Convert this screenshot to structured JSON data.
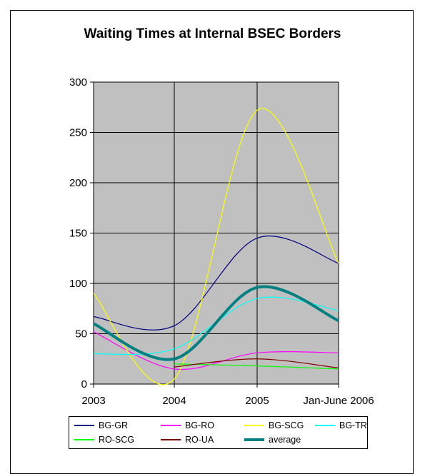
{
  "chart_data": {
    "type": "line",
    "title": "Waiting Times at Internal BSEC Borders",
    "xlabel": "",
    "ylabel": "",
    "categories": [
      "2003",
      "2004",
      "2005",
      "Jan-June 2006"
    ],
    "ylim": [
      0,
      300
    ],
    "yticks": [
      0,
      50,
      100,
      150,
      200,
      250,
      300
    ],
    "grid": true,
    "plot_background": "#c0c0c0",
    "legend_position": "bottom",
    "series": [
      {
        "name": "BG-GR",
        "color": "#000080",
        "width": 1.2,
        "values": [
          67,
          58,
          145,
          120
        ]
      },
      {
        "name": "BG-RO",
        "color": "#ff00ff",
        "width": 1.2,
        "values": [
          52,
          15,
          31,
          31
        ]
      },
      {
        "name": "BG-SCG",
        "color": "#ffff00",
        "width": 1.2,
        "values": [
          90,
          5,
          272,
          120
        ]
      },
      {
        "name": "BG-TR",
        "color": "#00ffff",
        "width": 1.2,
        "values": [
          30,
          35,
          85,
          73
        ]
      },
      {
        "name": "RO-SCG",
        "color": "#00ff00",
        "width": 1.2,
        "values": [
          null,
          20,
          18,
          15
        ]
      },
      {
        "name": "RO-UA",
        "color": "#800000",
        "width": 1.2,
        "values": [
          null,
          17,
          25,
          16
        ]
      },
      {
        "name": "average",
        "color": "#008080",
        "width": 4,
        "values": [
          60,
          25,
          96,
          63
        ]
      }
    ]
  }
}
